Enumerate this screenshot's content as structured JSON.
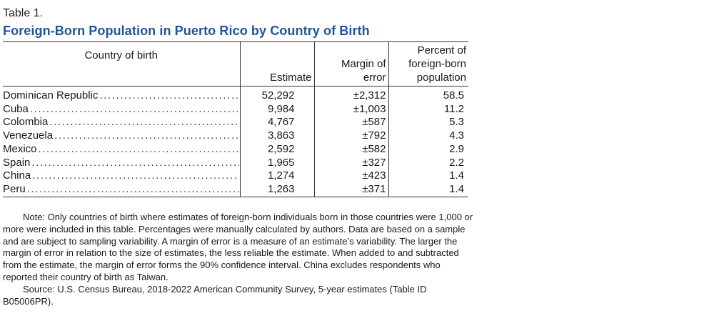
{
  "table_label": "Table 1.",
  "table_title": "Foreign-Born Population in Puerto Rico by Country of Birth",
  "headers": {
    "country": "Country of birth",
    "estimate": "Estimate",
    "moe_line1": "Margin of",
    "moe_line2": "error",
    "pct_line1": "Percent of",
    "pct_line2": "foreign-born",
    "pct_line3": "population"
  },
  "rows": [
    {
      "country": "Dominican Republic",
      "estimate": "52,292",
      "moe": "±2,312",
      "pct": "58.5"
    },
    {
      "country": "Cuba",
      "estimate": "9,984",
      "moe": "±1,003",
      "pct": "11.2"
    },
    {
      "country": "Colombia",
      "estimate": "4,767",
      "moe": "±587",
      "pct": "5.3"
    },
    {
      "country": "Venezuela",
      "estimate": "3,863",
      "moe": "±792",
      "pct": "4.3"
    },
    {
      "country": "Mexico",
      "estimate": "2,592",
      "moe": "±582",
      "pct": "2.9"
    },
    {
      "country": "Spain",
      "estimate": "1,965",
      "moe": "±327",
      "pct": "2.2"
    },
    {
      "country": "China",
      "estimate": "1,274",
      "moe": "±423",
      "pct": "1.4"
    },
    {
      "country": "Peru",
      "estimate": "1,263",
      "moe": "±371",
      "pct": "1.4"
    }
  ],
  "note": "Note: Only countries of birth where estimates of foreign-born individuals born in those countries were 1,000 or more were included in this table. Percentages were manually calculated by authors. Data are based on a sample and are subject to sampling variability. A margin of error is a measure of an estimate’s variability. The larger the margin of error in relation to the size of estimates, the less reliable the estimate. When added to and subtracted from the estimate, the margin of error forms the 90% confidence interval. China excludes respondents who reported their country of birth as Taiwan.",
  "source": "Source: U.S. Census Bureau, 2018-2022 American Community Survey, 5-year estimates (Table ID B05006PR).",
  "colors": {
    "title": "#1f5597",
    "text": "#1a1a1a",
    "rule": "#333333"
  }
}
